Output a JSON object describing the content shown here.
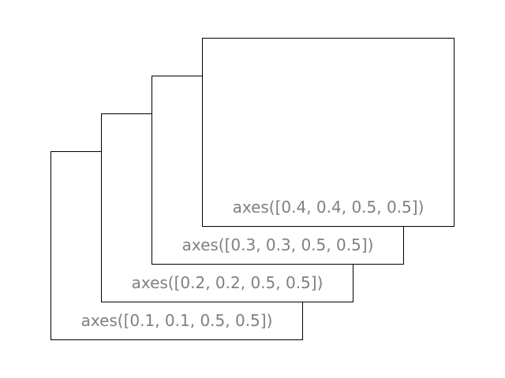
{
  "colors": {
    "label": "#808080",
    "border": "#000000",
    "background": "#ffffff"
  },
  "axes": [
    {
      "label": "axes([0.1, 0.1, 0.5, 0.5])"
    },
    {
      "label": "axes([0.2, 0.2, 0.5, 0.5])"
    },
    {
      "label": "axes([0.3, 0.3, 0.5, 0.5])"
    },
    {
      "label": "axes([0.4, 0.4, 0.5, 0.5])"
    }
  ]
}
